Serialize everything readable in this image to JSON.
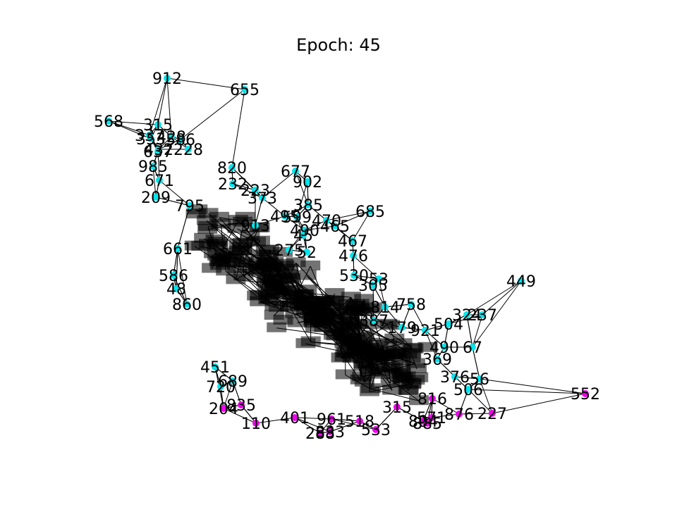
{
  "chart_data": {
    "type": "scatter",
    "title": "Epoch: 45",
    "grid": false,
    "axes_visible": false,
    "xlim": [
      0,
      960
    ],
    "ylim": [
      0,
      720
    ],
    "colors": {
      "class_a": "#00e5ee",
      "class_b": "#ee00ee",
      "label": "#000000",
      "edge": "#000000"
    },
    "points": [
      {
        "label": "912",
        "x": 237,
        "y": 111,
        "c": "class_a"
      },
      {
        "label": "655",
        "x": 347,
        "y": 127,
        "c": "class_a"
      },
      {
        "label": "568",
        "x": 154,
        "y": 172,
        "c": "class_a"
      },
      {
        "label": "315",
        "x": 224,
        "y": 177,
        "c": "class_a"
      },
      {
        "label": "337",
        "x": 212,
        "y": 192,
        "c": "class_a"
      },
      {
        "label": "353",
        "x": 214,
        "y": 197,
        "c": "class_a"
      },
      {
        "label": "428",
        "x": 243,
        "y": 194,
        "c": "class_a"
      },
      {
        "label": "586",
        "x": 256,
        "y": 198,
        "c": "class_a"
      },
      {
        "label": "637",
        "x": 224,
        "y": 215,
        "c": "class_a"
      },
      {
        "label": "432",
        "x": 225,
        "y": 212,
        "c": "class_a"
      },
      {
        "label": "228",
        "x": 267,
        "y": 212,
        "c": "class_a"
      },
      {
        "label": "985",
        "x": 217,
        "y": 236,
        "c": "class_a"
      },
      {
        "label": "820",
        "x": 329,
        "y": 238,
        "c": "class_a"
      },
      {
        "label": "677",
        "x": 419,
        "y": 243,
        "c": "class_a"
      },
      {
        "label": "902",
        "x": 436,
        "y": 258,
        "c": "class_a"
      },
      {
        "label": "671",
        "x": 226,
        "y": 256,
        "c": "class_a"
      },
      {
        "label": "232",
        "x": 330,
        "y": 261,
        "c": "class_a"
      },
      {
        "label": "223",
        "x": 362,
        "y": 270,
        "c": "class_a"
      },
      {
        "label": "209",
        "x": 221,
        "y": 280,
        "c": "class_a"
      },
      {
        "label": "373",
        "x": 372,
        "y": 281,
        "c": "class_a"
      },
      {
        "label": "385",
        "x": 437,
        "y": 291,
        "c": "class_a"
      },
      {
        "label": "685",
        "x": 525,
        "y": 300,
        "c": "class_a"
      },
      {
        "label": "795",
        "x": 269,
        "y": 292,
        "c": "class_a"
      },
      {
        "label": "495",
        "x": 404,
        "y": 307,
        "c": "class_a"
      },
      {
        "label": "599",
        "x": 421,
        "y": 308,
        "c": "class_a"
      },
      {
        "label": "470",
        "x": 463,
        "y": 313,
        "c": "class_a"
      },
      {
        "label": "465",
        "x": 475,
        "y": 321,
        "c": "class_a"
      },
      {
        "label": "913",
        "x": 362,
        "y": 320,
        "c": "class_a"
      },
      {
        "label": "490",
        "x": 432,
        "y": 327,
        "c": "class_a"
      },
      {
        "label": "45",
        "x": 430,
        "y": 334,
        "c": "class_a"
      },
      {
        "label": "467",
        "x": 500,
        "y": 342,
        "c": "class_a"
      },
      {
        "label": "661",
        "x": 252,
        "y": 353,
        "c": "class_a"
      },
      {
        "label": "275",
        "x": 410,
        "y": 355,
        "c": "class_a"
      },
      {
        "label": "52",
        "x": 435,
        "y": 358,
        "c": "class_a"
      },
      {
        "label": "476",
        "x": 501,
        "y": 363,
        "c": "class_a"
      },
      {
        "label": "586",
        "x": 246,
        "y": 391,
        "c": "class_a"
      },
      {
        "label": "530",
        "x": 502,
        "y": 391,
        "c": "class_a"
      },
      {
        "label": "53",
        "x": 537,
        "y": 396,
        "c": "class_a"
      },
      {
        "label": "449",
        "x": 739,
        "y": 399,
        "c": "class_a"
      },
      {
        "label": "48",
        "x": 250,
        "y": 410,
        "c": "class_a"
      },
      {
        "label": "305",
        "x": 529,
        "y": 405,
        "c": "class_a"
      },
      {
        "label": "860",
        "x": 265,
        "y": 432,
        "c": "class_a"
      },
      {
        "label": "758",
        "x": 583,
        "y": 432,
        "c": "class_a"
      },
      {
        "label": "814",
        "x": 546,
        "y": 436,
        "c": "class_a"
      },
      {
        "label": "324",
        "x": 662,
        "y": 447,
        "c": "class_a"
      },
      {
        "label": "237",
        "x": 684,
        "y": 447,
        "c": "class_a"
      },
      {
        "label": "387",
        "x": 530,
        "y": 455,
        "c": "class_a"
      },
      {
        "label": "504",
        "x": 636,
        "y": 460,
        "c": "class_a"
      },
      {
        "label": "179",
        "x": 570,
        "y": 465,
        "c": "class_a"
      },
      {
        "label": "921",
        "x": 603,
        "y": 469,
        "c": "class_a"
      },
      {
        "label": "490",
        "x": 630,
        "y": 493,
        "c": "class_a"
      },
      {
        "label": "67",
        "x": 670,
        "y": 493,
        "c": "class_a"
      },
      {
        "label": "451",
        "x": 305,
        "y": 521,
        "c": "class_a"
      },
      {
        "label": "369",
        "x": 620,
        "y": 510,
        "c": "class_a"
      },
      {
        "label": "720",
        "x": 313,
        "y": 549,
        "c": "class_a"
      },
      {
        "label": "689",
        "x": 330,
        "y": 541,
        "c": "class_a"
      },
      {
        "label": "376",
        "x": 645,
        "y": 535,
        "c": "class_a"
      },
      {
        "label": "56",
        "x": 680,
        "y": 538,
        "c": "class_a"
      },
      {
        "label": "506",
        "x": 664,
        "y": 553,
        "c": "class_a"
      },
      {
        "label": "552",
        "x": 830,
        "y": 559,
        "c": "class_b"
      },
      {
        "label": "227",
        "x": 698,
        "y": 587,
        "c": "class_b"
      },
      {
        "label": "876",
        "x": 651,
        "y": 588,
        "c": "class_b"
      },
      {
        "label": "816",
        "x": 613,
        "y": 566,
        "c": "class_b"
      },
      {
        "label": "571",
        "x": 612,
        "y": 593,
        "c": "class_b"
      },
      {
        "label": "885",
        "x": 606,
        "y": 601,
        "c": "class_b"
      },
      {
        "label": "804",
        "x": 600,
        "y": 598,
        "c": "class_b"
      },
      {
        "label": "533",
        "x": 533,
        "y": 610,
        "c": "class_b"
      },
      {
        "label": "315",
        "x": 563,
        "y": 578,
        "c": "class_b"
      },
      {
        "label": "204",
        "x": 317,
        "y": 580,
        "c": "class_b"
      },
      {
        "label": "835",
        "x": 342,
        "y": 575,
        "c": "class_b"
      },
      {
        "label": "110",
        "x": 363,
        "y": 601,
        "c": "class_b"
      },
      {
        "label": "288",
        "x": 454,
        "y": 615,
        "c": "class_b"
      },
      {
        "label": "833",
        "x": 468,
        "y": 613,
        "c": "class_b"
      },
      {
        "label": "401",
        "x": 418,
        "y": 593,
        "c": "class_b"
      },
      {
        "label": "961",
        "x": 470,
        "y": 595,
        "c": "class_b"
      },
      {
        "label": "518",
        "x": 510,
        "y": 598,
        "c": "class_b"
      }
    ]
  }
}
